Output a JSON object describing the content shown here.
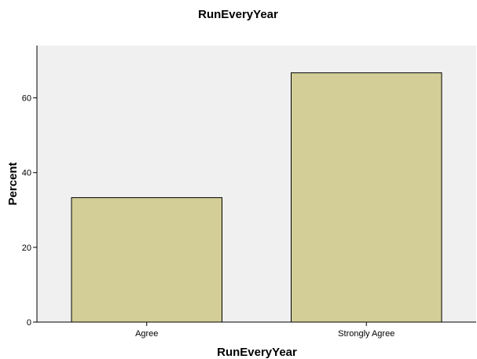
{
  "chart_data": {
    "type": "bar",
    "title": "RunEveryYear",
    "xlabel": "RunEveryYear",
    "ylabel": "Percent",
    "categories": [
      "Agree",
      "Strongly Agree"
    ],
    "values": [
      33.3,
      66.7
    ],
    "ylim": [
      0,
      74
    ],
    "yticks": [
      0,
      20,
      40,
      60
    ],
    "grid": false,
    "legend": "none",
    "colors": {
      "plot_background": "#f0f0f0",
      "bar_fill": "#d3ce97",
      "bar_stroke": "#000000",
      "axis": "#000000"
    }
  }
}
